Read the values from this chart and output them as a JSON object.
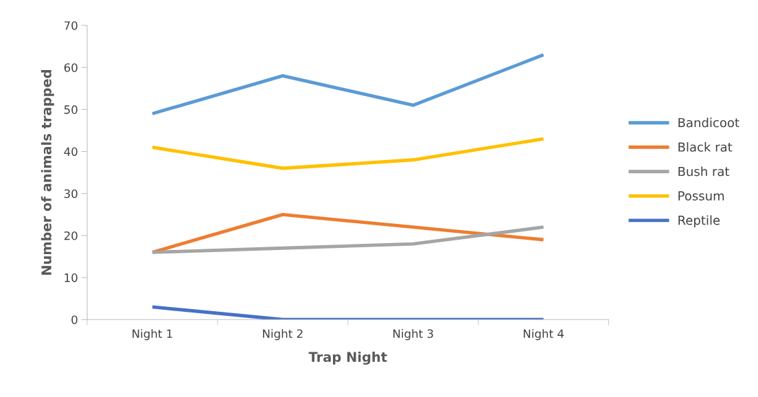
{
  "chart_data": {
    "type": "line",
    "xlabel": "Trap Night",
    "ylabel": "Number of animals trapped",
    "categories": [
      "Night 1",
      "Night 2",
      "Night 3",
      "Night 4"
    ],
    "series": [
      {
        "name": "Bandicoot",
        "color": "#5b9bd5",
        "values": [
          49,
          58,
          51,
          63
        ]
      },
      {
        "name": "Black rat",
        "color": "#ed7d31",
        "values": [
          16,
          25,
          22,
          19
        ]
      },
      {
        "name": "Bush rat",
        "color": "#a5a5a5",
        "values": [
          16,
          17,
          18,
          22
        ]
      },
      {
        "name": "Possum",
        "color": "#ffc000",
        "values": [
          41,
          36,
          38,
          43
        ]
      },
      {
        "name": "Reptile",
        "color": "#4472c4",
        "values": [
          3,
          0,
          0,
          0
        ]
      }
    ],
    "ylim": [
      0,
      70
    ],
    "yticks": [
      0,
      10,
      20,
      30,
      40,
      50,
      60,
      70
    ],
    "grid": false,
    "legend": "right",
    "marker": "none",
    "line_style": "solid"
  }
}
